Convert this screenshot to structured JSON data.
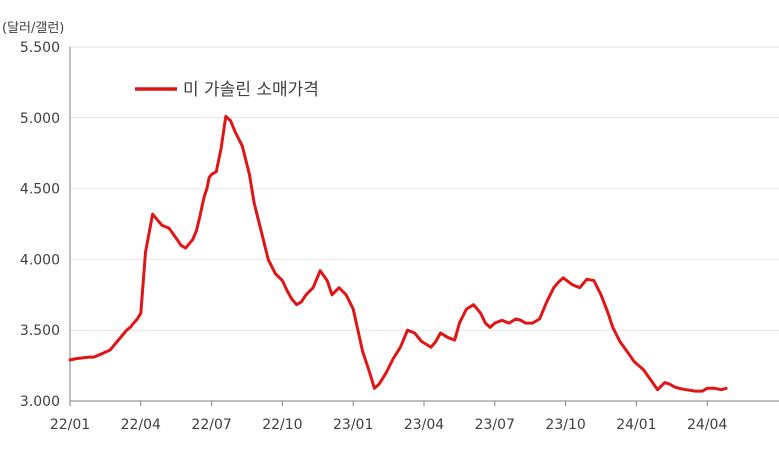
{
  "chart_data": {
    "type": "line",
    "y_unit_label": "(달러/갤런)",
    "ylim": [
      3.0,
      5.5
    ],
    "y_ticks": [
      "3.000",
      "3.500",
      "4.000",
      "4.500",
      "5.000",
      "5.500"
    ],
    "y_tick_values": [
      3.0,
      3.5,
      4.0,
      4.5,
      5.0,
      5.5
    ],
    "x_ticks": [
      "22/01",
      "22/04",
      "22/07",
      "22/10",
      "23/01",
      "23/04",
      "23/07",
      "23/10",
      "24/01",
      "24/04"
    ],
    "x_range_months": [
      0,
      30
    ],
    "grid": {
      "horizontal": true,
      "vertical": false
    },
    "legend_position": "top-left",
    "series": [
      {
        "name": "미 가솔린 소매가격",
        "color": "#e01515",
        "x_months": [
          0,
          0.3,
          0.8,
          1.0,
          1.3,
          1.7,
          2.0,
          2.2,
          2.4,
          2.55,
          2.7,
          2.85,
          3.0,
          3.2,
          3.5,
          3.7,
          3.9,
          4.2,
          4.5,
          4.7,
          4.9,
          5.2,
          5.35,
          5.5,
          5.6,
          5.7,
          5.8,
          5.9,
          6.0,
          6.2,
          6.4,
          6.6,
          6.8,
          7.0,
          7.3,
          7.6,
          7.8,
          8.1,
          8.4,
          8.7,
          9.0,
          9.2,
          9.4,
          9.6,
          9.8,
          10.0,
          10.3,
          10.6,
          10.9,
          11.1,
          11.4,
          11.7,
          12.0,
          12.2,
          12.4,
          12.7,
          12.9,
          13.1,
          13.4,
          13.7,
          14.0,
          14.3,
          14.6,
          14.9,
          15.1,
          15.3,
          15.5,
          15.7,
          16.0,
          16.3,
          16.5,
          16.8,
          17.1,
          17.4,
          17.6,
          17.8,
          18.0,
          18.3,
          18.6,
          18.9,
          19.1,
          19.3,
          19.6,
          19.9,
          20.2,
          20.5,
          20.7,
          20.9,
          21.3,
          21.6,
          21.9,
          22.2,
          22.5,
          22.8,
          23.0,
          23.3,
          23.6,
          23.9,
          24.1,
          24.3,
          24.6,
          24.9,
          25.2,
          25.4,
          25.6,
          25.8,
          26.1,
          26.5,
          26.8,
          27.0,
          27.3,
          27.6,
          27.8
        ],
        "values": [
          3.29,
          3.3,
          3.31,
          3.31,
          3.33,
          3.36,
          3.42,
          3.46,
          3.5,
          3.52,
          3.55,
          3.58,
          3.62,
          4.05,
          4.32,
          4.28,
          4.24,
          4.22,
          4.15,
          4.1,
          4.08,
          4.14,
          4.2,
          4.3,
          4.38,
          4.45,
          4.5,
          4.58,
          4.6,
          4.62,
          4.78,
          5.01,
          4.98,
          4.9,
          4.8,
          4.6,
          4.4,
          4.2,
          4.0,
          3.9,
          3.85,
          3.78,
          3.72,
          3.68,
          3.7,
          3.75,
          3.8,
          3.92,
          3.85,
          3.75,
          3.8,
          3.75,
          3.65,
          3.5,
          3.35,
          3.2,
          3.09,
          3.12,
          3.2,
          3.3,
          3.38,
          3.5,
          3.48,
          3.42,
          3.4,
          3.38,
          3.42,
          3.48,
          3.45,
          3.43,
          3.55,
          3.65,
          3.68,
          3.62,
          3.55,
          3.52,
          3.55,
          3.57,
          3.55,
          3.58,
          3.57,
          3.55,
          3.55,
          3.58,
          3.7,
          3.8,
          3.84,
          3.87,
          3.82,
          3.8,
          3.86,
          3.85,
          3.75,
          3.62,
          3.52,
          3.42,
          3.35,
          3.28,
          3.25,
          3.22,
          3.15,
          3.08,
          3.13,
          3.12,
          3.1,
          3.09,
          3.08,
          3.07,
          3.07,
          3.09,
          3.09,
          3.08,
          3.09
        ]
      }
    ]
  }
}
